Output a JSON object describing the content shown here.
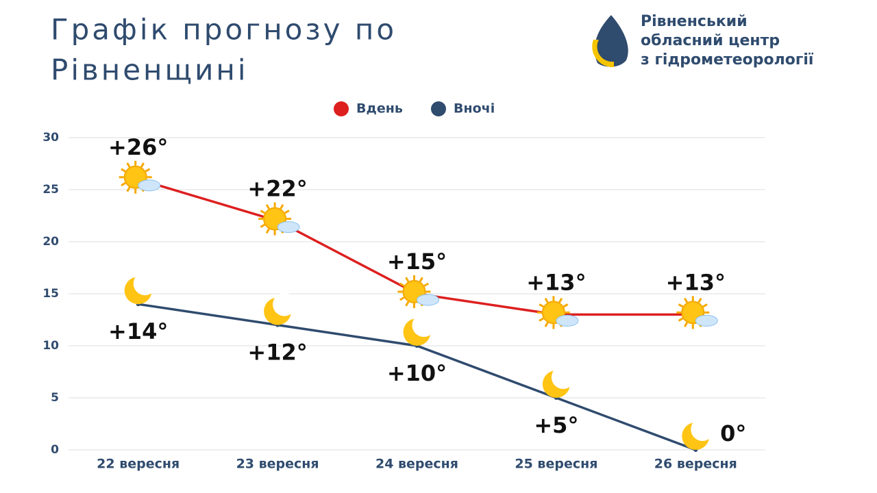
{
  "logo": {
    "lines": [
      "Рівненський",
      "обласний центр",
      "з гідрометеорології"
    ]
  },
  "chart_data": {
    "type": "line",
    "title": [
      "Графік прогнозу по",
      "Рівненщині"
    ],
    "categories": [
      "22 вересня",
      "23 вересня",
      "24 вересня",
      "25 вересня",
      "26 вересня"
    ],
    "series": [
      {
        "name": "Вдень",
        "color": "#dd1f1f",
        "values": [
          26,
          22,
          15,
          13,
          13
        ],
        "value_labels": [
          "+26°",
          "+22°",
          "+15°",
          "+13°",
          "+13°"
        ]
      },
      {
        "name": "Вночі",
        "color": "#2f4b6e",
        "values": [
          14,
          12,
          10,
          5,
          0
        ],
        "value_labels": [
          "+14°",
          "+12°",
          "+10°",
          "+5°",
          "0°"
        ]
      }
    ],
    "ylim": [
      0,
      30
    ],
    "yticks": [
      0,
      5,
      10,
      15,
      20,
      25,
      30
    ],
    "grid": true,
    "legend": "top"
  }
}
